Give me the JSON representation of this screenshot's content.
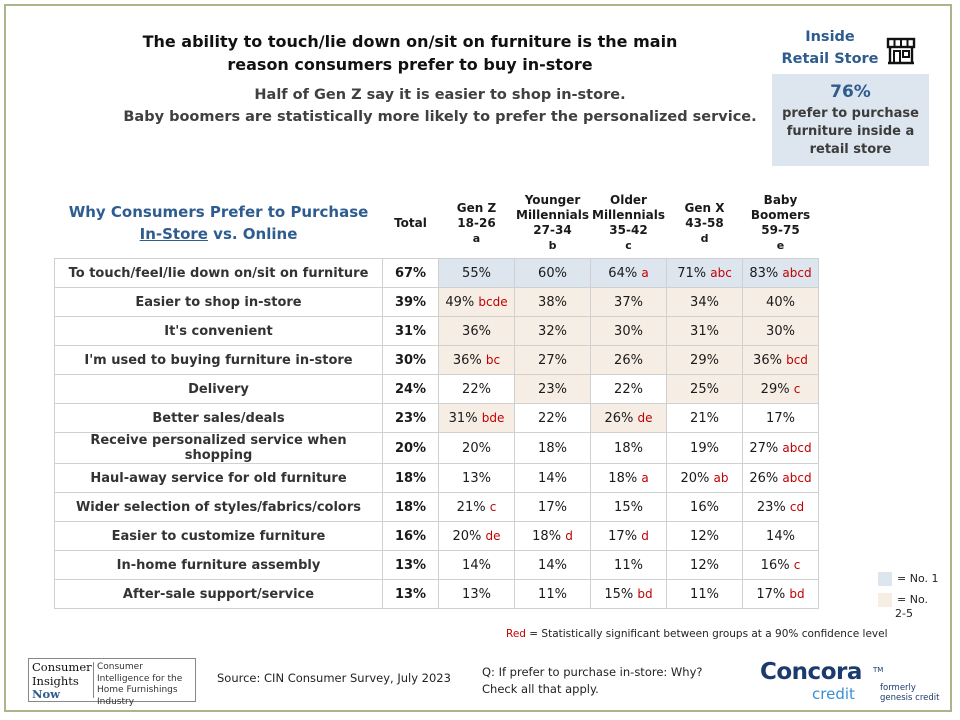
{
  "header": {
    "title": "The ability to touch/lie down on/sit on furniture is the main reason consumers prefer to buy in-store",
    "subtitle_line1": "Half of Gen Z say it is easier to shop in-store.",
    "subtitle_line2": "Baby boomers are statistically more likely to prefer the personalized service."
  },
  "side_panel": {
    "label_line1": "Inside",
    "label_line2": "Retail Store",
    "icon": "storefront-icon",
    "stat_value": "76%",
    "stat_text": "prefer to purchase furniture inside a retail store"
  },
  "table": {
    "title_part1": "Why Consumers Prefer to Purchase",
    "title_part2_underlined": "In-Store",
    "title_part2_rest": " vs. Online",
    "columns": [
      {
        "line1": "Total",
        "line2": "",
        "line3": "",
        "line4": ""
      },
      {
        "line1": "Gen Z",
        "line2": "18-26",
        "line3": "a",
        "line4": ""
      },
      {
        "line1": "Younger",
        "line2": "Millennials",
        "line3": "27-34",
        "line4": "b"
      },
      {
        "line1": "Older",
        "line2": "Millennials",
        "line3": "35-42",
        "line4": "c"
      },
      {
        "line1": "Gen X",
        "line2": "43-58",
        "line3": "d",
        "line4": ""
      },
      {
        "line1": "Baby",
        "line2": "Boomers",
        "line3": "59-75",
        "line4": "e"
      }
    ],
    "rows": [
      {
        "label": "To touch/feel/lie down on/sit on furniture",
        "total": "67%",
        "cells": [
          {
            "value": "55%",
            "sig": "",
            "rank": 1
          },
          {
            "value": "60%",
            "sig": "",
            "rank": 1
          },
          {
            "value": "64%",
            "sig": "a",
            "rank": 1
          },
          {
            "value": "71%",
            "sig": "abc",
            "rank": 1
          },
          {
            "value": "83%",
            "sig": "abcd",
            "rank": 1
          }
        ]
      },
      {
        "label": "Easier to shop in-store",
        "total": "39%",
        "cells": [
          {
            "value": "49%",
            "sig": "bcde",
            "rank": 2
          },
          {
            "value": "38%",
            "sig": "",
            "rank": 2
          },
          {
            "value": "37%",
            "sig": "",
            "rank": 2
          },
          {
            "value": "34%",
            "sig": "",
            "rank": 2
          },
          {
            "value": "40%",
            "sig": "",
            "rank": 2
          }
        ]
      },
      {
        "label": "It's convenient",
        "total": "31%",
        "cells": [
          {
            "value": "36%",
            "sig": "",
            "rank": 2
          },
          {
            "value": "32%",
            "sig": "",
            "rank": 2
          },
          {
            "value": "30%",
            "sig": "",
            "rank": 2
          },
          {
            "value": "31%",
            "sig": "",
            "rank": 2
          },
          {
            "value": "30%",
            "sig": "",
            "rank": 2
          }
        ]
      },
      {
        "label": "I'm used to buying furniture in-store",
        "total": "30%",
        "cells": [
          {
            "value": "36%",
            "sig": "bc",
            "rank": 2
          },
          {
            "value": "27%",
            "sig": "",
            "rank": 2
          },
          {
            "value": "26%",
            "sig": "",
            "rank": 2
          },
          {
            "value": "29%",
            "sig": "",
            "rank": 2
          },
          {
            "value": "36%",
            "sig": "bcd",
            "rank": 2
          }
        ]
      },
      {
        "label": "Delivery",
        "total": "24%",
        "cells": [
          {
            "value": "22%",
            "sig": "",
            "rank": 0
          },
          {
            "value": "23%",
            "sig": "",
            "rank": 2
          },
          {
            "value": "22%",
            "sig": "",
            "rank": 0
          },
          {
            "value": "25%",
            "sig": "",
            "rank": 2
          },
          {
            "value": "29%",
            "sig": "c",
            "rank": 2
          }
        ]
      },
      {
        "label": "Better sales/deals",
        "total": "23%",
        "cells": [
          {
            "value": "31%",
            "sig": "bde",
            "rank": 2
          },
          {
            "value": "22%",
            "sig": "",
            "rank": 0
          },
          {
            "value": "26%",
            "sig": "de",
            "rank": 2
          },
          {
            "value": "21%",
            "sig": "",
            "rank": 0
          },
          {
            "value": "17%",
            "sig": "",
            "rank": 0
          }
        ]
      },
      {
        "label": "Receive personalized service when shopping",
        "total": "20%",
        "cells": [
          {
            "value": "20%",
            "sig": "",
            "rank": 0
          },
          {
            "value": "18%",
            "sig": "",
            "rank": 0
          },
          {
            "value": "18%",
            "sig": "",
            "rank": 0
          },
          {
            "value": "19%",
            "sig": "",
            "rank": 0
          },
          {
            "value": "27%",
            "sig": "abcd",
            "rank": 0
          }
        ]
      },
      {
        "label": "Haul-away service for old furniture",
        "total": "18%",
        "cells": [
          {
            "value": "13%",
            "sig": "",
            "rank": 0
          },
          {
            "value": "14%",
            "sig": "",
            "rank": 0
          },
          {
            "value": "18%",
            "sig": "a",
            "rank": 0
          },
          {
            "value": "20%",
            "sig": "ab",
            "rank": 0
          },
          {
            "value": "26%",
            "sig": "abcd",
            "rank": 0
          }
        ]
      },
      {
        "label": "Wider selection of styles/fabrics/colors",
        "total": "18%",
        "cells": [
          {
            "value": "21%",
            "sig": "c",
            "rank": 0
          },
          {
            "value": "17%",
            "sig": "",
            "rank": 0
          },
          {
            "value": "15%",
            "sig": "",
            "rank": 0
          },
          {
            "value": "16%",
            "sig": "",
            "rank": 0
          },
          {
            "value": "23%",
            "sig": "cd",
            "rank": 0
          }
        ]
      },
      {
        "label": "Easier to customize furniture",
        "total": "16%",
        "cells": [
          {
            "value": "20%",
            "sig": "de",
            "rank": 0
          },
          {
            "value": "18%",
            "sig": "d",
            "rank": 0
          },
          {
            "value": "17%",
            "sig": "d",
            "rank": 0
          },
          {
            "value": "12%",
            "sig": "",
            "rank": 0
          },
          {
            "value": "14%",
            "sig": "",
            "rank": 0
          }
        ]
      },
      {
        "label": "In-home furniture assembly",
        "total": "13%",
        "cells": [
          {
            "value": "14%",
            "sig": "",
            "rank": 0
          },
          {
            "value": "14%",
            "sig": "",
            "rank": 0
          },
          {
            "value": "11%",
            "sig": "",
            "rank": 0
          },
          {
            "value": "12%",
            "sig": "",
            "rank": 0
          },
          {
            "value": "16%",
            "sig": "c",
            "rank": 0
          }
        ]
      },
      {
        "label": "After-sale support/service",
        "total": "13%",
        "cells": [
          {
            "value": "13%",
            "sig": "",
            "rank": 0
          },
          {
            "value": "11%",
            "sig": "",
            "rank": 0
          },
          {
            "value": "15%",
            "sig": "bd",
            "rank": 0
          },
          {
            "value": "11%",
            "sig": "",
            "rank": 0
          },
          {
            "value": "17%",
            "sig": "bd",
            "rank": 0
          }
        ]
      }
    ]
  },
  "legend": {
    "no1_label": "= No. 1",
    "no1_color": "#dde5ee",
    "no25_label_line1": "= No.",
    "no25_label_line2": "2-5",
    "no25_color": "#f6eee5"
  },
  "note": {
    "red_word": "Red",
    "rest": " = Statistically significant between groups at a 90% confidence level"
  },
  "footer": {
    "cin_logo": {
      "line1": "Consumer",
      "line2": "Insights",
      "line3": "Now",
      "tagline": "Consumer Intelligence for the Home Furnishings Industry"
    },
    "source": "Source: CIN Consumer Survey, July 2023",
    "question_line1": "Q: If prefer to purchase in-store: Why?",
    "question_line2": "Check all that apply.",
    "brand_name": "Concora",
    "brand_sub": "credit",
    "brand_tm": "TM",
    "formerly_line1": "formerly",
    "formerly_line2": "genesis credit"
  },
  "colors": {
    "accent_blue": "#2e5c8f",
    "sig_red": "#c00000",
    "frame_green": "#a9b58a"
  }
}
